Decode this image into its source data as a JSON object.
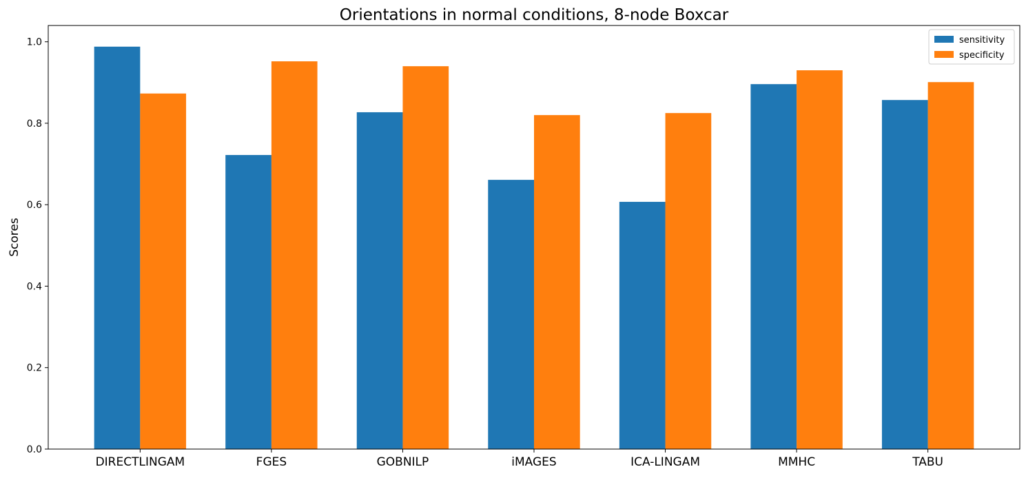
{
  "chart_data": {
    "type": "bar",
    "title": "Orientations in normal conditions, 8-node Boxcar",
    "xlabel": "",
    "ylabel": "Scores",
    "categories": [
      "DIRECTLINGAM",
      "FGES",
      "GOBNILP",
      "iMAGES",
      "ICA-LINGAM",
      "MMHC",
      "TABU"
    ],
    "series": [
      {
        "name": "sensitivity",
        "color": "#1f77b4",
        "values": [
          0.988,
          0.722,
          0.827,
          0.661,
          0.607,
          0.896,
          0.857
        ]
      },
      {
        "name": "specificity",
        "color": "#ff7f0e",
        "values": [
          0.873,
          0.952,
          0.94,
          0.82,
          0.825,
          0.93,
          0.901
        ]
      }
    ],
    "ylim": [
      0,
      1.04
    ],
    "yticks": [
      0.0,
      0.2,
      0.4,
      0.6,
      0.8,
      1.0
    ],
    "ytick_labels": [
      "0.0",
      "0.2",
      "0.4",
      "0.6",
      "0.8",
      "1.0"
    ],
    "grid": false,
    "legend_position": "top-right"
  }
}
